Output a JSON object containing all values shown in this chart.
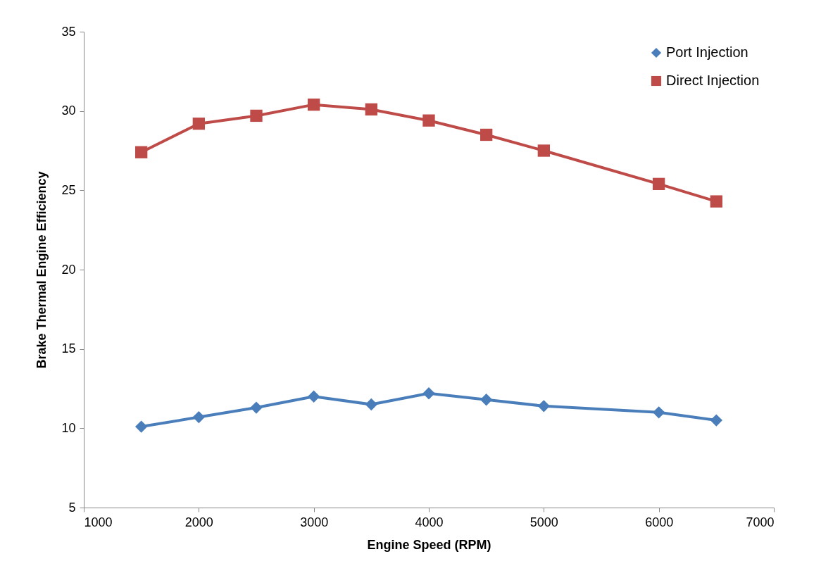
{
  "chart_data": {
    "type": "line",
    "xlabel": "Engine Speed (RPM)",
    "ylabel": "Brake Thermal Engine Efficiency",
    "x": [
      1500,
      2000,
      2500,
      3000,
      3500,
      4000,
      4500,
      5000,
      6000,
      6500
    ],
    "series": [
      {
        "name": "Port Injection",
        "color": "#4a7ebb",
        "marker": "diamond",
        "values": [
          10.1,
          10.7,
          11.3,
          12.0,
          11.5,
          12.2,
          11.8,
          11.4,
          11.0,
          10.5
        ]
      },
      {
        "name": "Direct Injection",
        "color": "#be4b48",
        "marker": "square",
        "values": [
          27.4,
          29.2,
          29.7,
          30.4,
          30.1,
          29.4,
          28.5,
          27.5,
          25.4,
          24.3
        ]
      }
    ],
    "xlim": [
      1000,
      7000
    ],
    "xticks": [
      1000,
      2000,
      3000,
      4000,
      5000,
      6000,
      7000
    ],
    "ylim": [
      5,
      35
    ],
    "yticks": [
      5,
      10,
      15,
      20,
      25,
      30,
      35
    ],
    "grid": false,
    "legend": "top right",
    "line_style": "solid"
  }
}
